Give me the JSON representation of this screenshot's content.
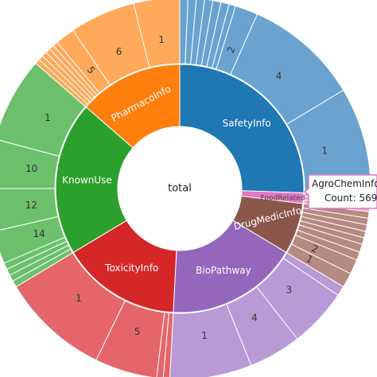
{
  "chart_data": {
    "type": "sunburst",
    "center_label": "total",
    "categories": [
      {
        "name": "SafetyInfo",
        "color": "#1f77b4",
        "start": 0.0,
        "end": 92.0,
        "children_color": "#6aa3d0",
        "children": [
          {
            "label": "",
            "start": 0.0,
            "end": 2.5
          },
          {
            "label": "",
            "start": 2.5,
            "end": 5.0
          },
          {
            "label": "",
            "start": 5.0,
            "end": 7.5
          },
          {
            "label": "",
            "start": 7.5,
            "end": 10.0
          },
          {
            "label": "",
            "start": 10.0,
            "end": 12.5
          },
          {
            "label": "",
            "start": 12.5,
            "end": 15.0
          },
          {
            "label": "",
            "start": 15.0,
            "end": 17.0
          },
          {
            "label": "2",
            "start": 17.0,
            "end": 24.0
          },
          {
            "label": "4",
            "start": 24.0,
            "end": 59.0
          },
          {
            "label": "1",
            "start": 59.0,
            "end": 92.0
          }
        ]
      },
      {
        "name": "FoodRelated",
        "color": "#e377c2",
        "start": 92.0,
        "end": 97.0,
        "children_color": "#eea4d6",
        "children": [
          {
            "label": "",
            "start": 92.0,
            "end": 93.7
          },
          {
            "label": "",
            "start": 93.7,
            "end": 95.4
          },
          {
            "label": "",
            "start": 95.4,
            "end": 97.0
          }
        ]
      },
      {
        "name": "DrugMedicInfo",
        "color": "#8c564b",
        "start": 97.0,
        "end": 121.0,
        "children_color": "#b58a80",
        "children": [
          {
            "label": "",
            "start": 97.0,
            "end": 99.0
          },
          {
            "label": "",
            "start": 99.0,
            "end": 101.0
          },
          {
            "label": "",
            "start": 101.0,
            "end": 103.0
          },
          {
            "label": "",
            "start": 103.0,
            "end": 105.0
          },
          {
            "label": "",
            "start": 105.0,
            "end": 107.0
          },
          {
            "label": "",
            "start": 107.0,
            "end": 109.5
          },
          {
            "label": "",
            "start": 109.5,
            "end": 112.0
          },
          {
            "label": "2",
            "start": 112.0,
            "end": 116.5
          },
          {
            "label": "1",
            "start": 116.5,
            "end": 121.0
          }
        ]
      },
      {
        "name": "BioPathway",
        "color": "#9467bd",
        "start": 121.0,
        "end": 183.0,
        "children_color": "#b89ad6",
        "children": [
          {
            "label": "",
            "start": 121.0,
            "end": 124.0
          },
          {
            "label": "3",
            "start": 124.0,
            "end": 142.0
          },
          {
            "label": "4",
            "start": 142.0,
            "end": 158.0
          },
          {
            "label": "1",
            "start": 158.0,
            "end": 183.0
          }
        ]
      },
      {
        "name": "ToxicityInfo",
        "color": "#d62728",
        "start": 183.0,
        "end": 239.0,
        "children_color": "#e4666a",
        "children": [
          {
            "label": "",
            "start": 183.0,
            "end": 185.0
          },
          {
            "label": "",
            "start": 185.0,
            "end": 187.0
          },
          {
            "label": "5",
            "start": 187.0,
            "end": 206.0
          },
          {
            "label": "1",
            "start": 206.0,
            "end": 239.0
          }
        ]
      },
      {
        "name": "KnownUse",
        "color": "#2ca02c",
        "start": 239.0,
        "end": 311.0,
        "children_color": "#6cc06c",
        "children": [
          {
            "label": "",
            "start": 239.0,
            "end": 241.0
          },
          {
            "label": "",
            "start": 241.0,
            "end": 243.0
          },
          {
            "label": "",
            "start": 243.0,
            "end": 245.0
          },
          {
            "label": "",
            "start": 245.0,
            "end": 247.0
          },
          {
            "label": "14",
            "start": 247.0,
            "end": 257.0
          },
          {
            "label": "12",
            "start": 257.0,
            "end": 270.0
          },
          {
            "label": "10",
            "start": 270.0,
            "end": 285.0
          },
          {
            "label": "1",
            "start": 285.0,
            "end": 311.0
          }
        ]
      },
      {
        "name": "PharmacoInfo",
        "color": "#ff7f0e",
        "start": 311.0,
        "end": 360.0,
        "children_color": "#ffa95a",
        "children": [
          {
            "label": "",
            "start": 311.0,
            "end": 312.5
          },
          {
            "label": "",
            "start": 312.5,
            "end": 314.0
          },
          {
            "label": "",
            "start": 314.0,
            "end": 315.5
          },
          {
            "label": "",
            "start": 315.5,
            "end": 317.0
          },
          {
            "label": "",
            "start": 317.0,
            "end": 318.5
          },
          {
            "label": "",
            "start": 318.5,
            "end": 320.0
          },
          {
            "label": "5",
            "start": 320.0,
            "end": 326.0
          },
          {
            "label": "6",
            "start": 326.0,
            "end": 346.0
          },
          {
            "label": "1",
            "start": 346.0,
            "end": 360.0
          }
        ]
      }
    ],
    "hover": {
      "label": "AgroChemInfo",
      "count_text": "Count: 569"
    }
  }
}
